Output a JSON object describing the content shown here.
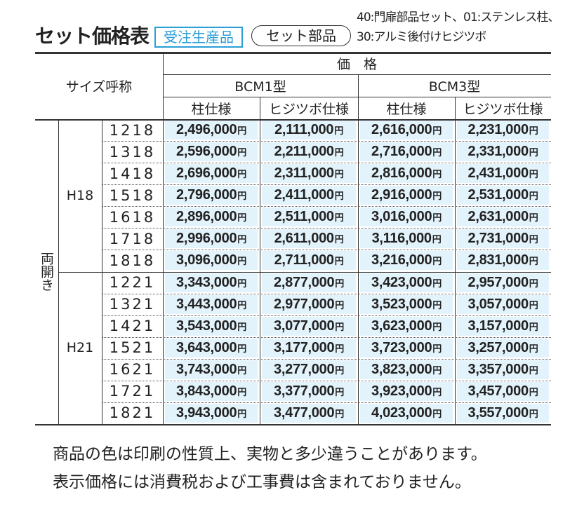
{
  "header": {
    "title": "セット価格表",
    "badge": "受注生産品",
    "set_label": "セット部品",
    "note_lines": [
      "40:門扉部品セット、01:ステンレス柱、",
      "30:アルミ後付けヒジツボ"
    ]
  },
  "table": {
    "size_header": "サイズ呼称",
    "price_header": "価　格",
    "models": [
      "BCM1型",
      "BCM3型"
    ],
    "subheaders": [
      "柱仕様",
      "ヒジツボ仕様",
      "柱仕様",
      "ヒジツボ仕様"
    ],
    "side_label": "両開き",
    "groups": [
      {
        "label": "H18",
        "rows": [
          [
            "1218",
            "2,496,000円",
            "2,111,000円",
            "2,616,000円",
            "2,231,000円"
          ],
          [
            "1318",
            "2,596,000円",
            "2,211,000円",
            "2,716,000円",
            "2,331,000円"
          ],
          [
            "1418",
            "2,696,000円",
            "2,311,000円",
            "2,816,000円",
            "2,431,000円"
          ],
          [
            "1518",
            "2,796,000円",
            "2,411,000円",
            "2,916,000円",
            "2,531,000円"
          ],
          [
            "1618",
            "2,896,000円",
            "2,511,000円",
            "3,016,000円",
            "2,631,000円"
          ],
          [
            "1718",
            "2,996,000円",
            "2,611,000円",
            "3,116,000円",
            "2,731,000円"
          ],
          [
            "1818",
            "3,096,000円",
            "2,711,000円",
            "3,216,000円",
            "2,831,000円"
          ]
        ]
      },
      {
        "label": "H21",
        "rows": [
          [
            "1221",
            "3,343,000円",
            "2,877,000円",
            "3,423,000円",
            "2,957,000円"
          ],
          [
            "1321",
            "3,443,000円",
            "2,977,000円",
            "3,523,000円",
            "3,057,000円"
          ],
          [
            "1421",
            "3,543,000円",
            "3,077,000円",
            "3,623,000円",
            "3,157,000円"
          ],
          [
            "1521",
            "3,643,000円",
            "3,177,000円",
            "3,723,000円",
            "3,257,000円"
          ],
          [
            "1621",
            "3,743,000円",
            "3,277,000円",
            "3,823,000円",
            "3,357,000円"
          ],
          [
            "1721",
            "3,843,000円",
            "3,377,000円",
            "3,923,000円",
            "3,457,000円"
          ],
          [
            "1821",
            "3,943,000円",
            "3,477,000円",
            "4,023,000円",
            "3,557,000円"
          ]
        ]
      }
    ]
  },
  "footnotes": [
    "商品の色は印刷の性質上、実物と多少違うことがあります。",
    "表示価格には消費税および工事費は含まれておりません。"
  ]
}
